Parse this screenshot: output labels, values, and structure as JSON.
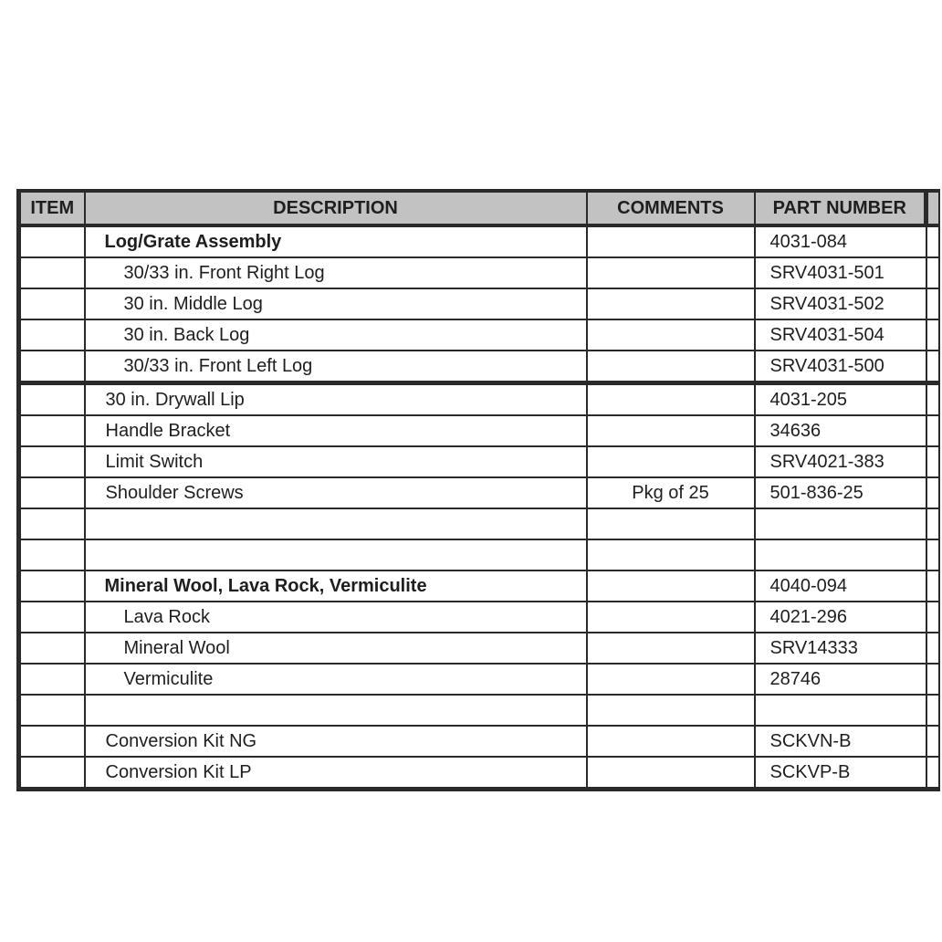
{
  "colors": {
    "header_bg": "#c2c2c2",
    "border": "#2a2a2a",
    "text": "#1e1e1e"
  },
  "table": {
    "headers": [
      "ITEM",
      "DESCRIPTION",
      "COMMENTS",
      "PART NUMBER"
    ],
    "rows": [
      {
        "item": "",
        "description": "Log/Grate Assembly",
        "comments": "",
        "part_number": "4031-084",
        "style": "bold",
        "section_end": false
      },
      {
        "item": "",
        "description": "30/33 in. Front Right Log",
        "comments": "",
        "part_number": "SRV4031-501",
        "style": "sub",
        "section_end": false
      },
      {
        "item": "",
        "description": "30 in. Middle Log",
        "comments": "",
        "part_number": "SRV4031-502",
        "style": "sub",
        "section_end": false
      },
      {
        "item": "",
        "description": "30 in. Back Log",
        "comments": "",
        "part_number": "SRV4031-504",
        "style": "sub",
        "section_end": false
      },
      {
        "item": "",
        "description": "30/33 in. Front Left Log",
        "comments": "",
        "part_number": "SRV4031-500",
        "style": "sub",
        "section_end": true
      },
      {
        "item": "",
        "description": "30 in. Drywall Lip",
        "comments": "",
        "part_number": "4031-205",
        "style": "plain",
        "section_end": false
      },
      {
        "item": "",
        "description": "Handle Bracket",
        "comments": "",
        "part_number": "34636",
        "style": "plain",
        "section_end": false
      },
      {
        "item": "",
        "description": "Limit Switch",
        "comments": "",
        "part_number": "SRV4021-383",
        "style": "plain",
        "section_end": false
      },
      {
        "item": "",
        "description": "Shoulder Screws",
        "comments": "Pkg of 25",
        "part_number": "501-836-25",
        "style": "plain",
        "section_end": false
      },
      {
        "item": "",
        "description": "",
        "comments": "",
        "part_number": "",
        "style": "plain",
        "section_end": false
      },
      {
        "item": "",
        "description": "",
        "comments": "",
        "part_number": "",
        "style": "plain",
        "section_end": false
      },
      {
        "item": "",
        "description": "Mineral Wool, Lava Rock, Vermiculite",
        "comments": "",
        "part_number": "4040-094",
        "style": "bold",
        "section_end": false
      },
      {
        "item": "",
        "description": "Lava Rock",
        "comments": "",
        "part_number": "4021-296",
        "style": "sub",
        "section_end": false
      },
      {
        "item": "",
        "description": "Mineral Wool",
        "comments": "",
        "part_number": "SRV14333",
        "style": "sub",
        "section_end": false
      },
      {
        "item": "",
        "description": "Vermiculite",
        "comments": "",
        "part_number": "28746",
        "style": "sub",
        "section_end": false
      },
      {
        "item": "",
        "description": "",
        "comments": "",
        "part_number": "",
        "style": "plain",
        "section_end": false
      },
      {
        "item": "",
        "description": "Conversion Kit NG",
        "comments": "",
        "part_number": "SCKVN-B",
        "style": "plain",
        "section_end": false
      },
      {
        "item": "",
        "description": "Conversion Kit LP",
        "comments": "",
        "part_number": "SCKVP-B",
        "style": "plain",
        "section_end": false
      }
    ]
  }
}
